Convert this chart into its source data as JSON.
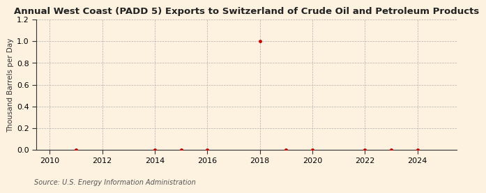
{
  "title": "Annual West Coast (PADD 5) Exports to Switzerland of Crude Oil and Petroleum Products",
  "ylabel": "Thousand Barrels per Day",
  "source": "Source: U.S. Energy Information Administration",
  "background_color": "#fdf2e0",
  "x_data": [
    2011,
    2014,
    2015,
    2016,
    2018,
    2019,
    2020,
    2022,
    2023,
    2024
  ],
  "y_data": [
    0,
    0,
    0,
    0,
    1.0,
    0,
    0,
    0,
    0,
    0
  ],
  "marker_color": "#cc0000",
  "marker_size": 3.5,
  "xlim": [
    2009.5,
    2025.5
  ],
  "ylim": [
    0,
    1.2
  ],
  "yticks": [
    0.0,
    0.2,
    0.4,
    0.6,
    0.8,
    1.0,
    1.2
  ],
  "xticks": [
    2010,
    2012,
    2014,
    2016,
    2018,
    2020,
    2022,
    2024
  ],
  "title_fontsize": 9.5,
  "label_fontsize": 7.5,
  "tick_fontsize": 8,
  "source_fontsize": 7
}
